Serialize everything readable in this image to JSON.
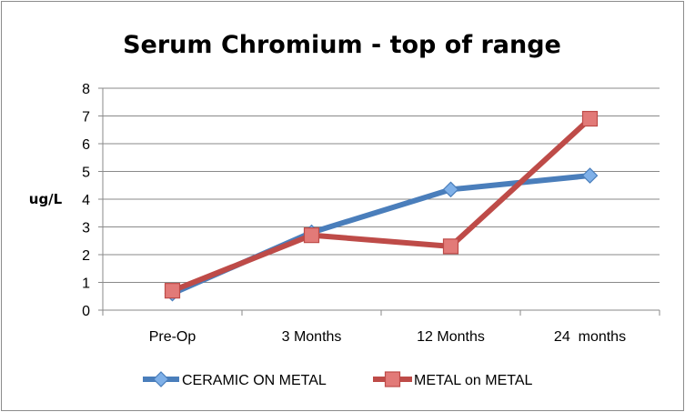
{
  "chart_data": {
    "type": "line",
    "title": "Serum Chromium - top of range",
    "xlabel": "",
    "ylabel": "ug/L",
    "categories": [
      "Pre-Op",
      "3 Months",
      "12 Months",
      "24  months"
    ],
    "ylim": [
      0,
      8
    ],
    "yticks": [
      0,
      1,
      2,
      3,
      4,
      5,
      6,
      7,
      8
    ],
    "grid": true,
    "legend_position": "bottom",
    "series": [
      {
        "name": "CERAMIC ON METAL",
        "values": [
          0.6,
          2.8,
          4.35,
          4.85
        ],
        "color": "#4a7ebb",
        "marker": "diamond",
        "marker_color": "#7fb0e8"
      },
      {
        "name": "METAL on METAL",
        "values": [
          0.7,
          2.7,
          2.3,
          6.9
        ],
        "color": "#be4b48",
        "marker": "square",
        "marker_color": "#e27a78"
      }
    ]
  }
}
